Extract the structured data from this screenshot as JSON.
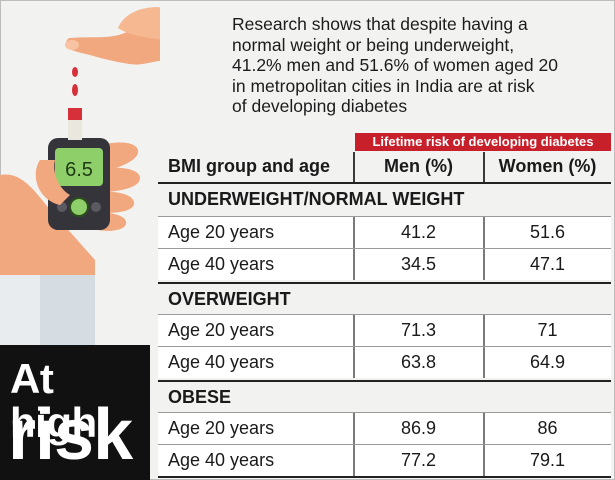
{
  "intro_text": "Research shows that despite having a\nnormal weight or being underweight,\n41.2% men and 51.6% of women aged 20\nin metropolitan cities in India are at risk\nof developing diabetes",
  "meter_reading": "6.5",
  "badge": {
    "line1": "At high",
    "line2": "risk"
  },
  "table": {
    "super_header": "Lifetime risk of developing diabetes",
    "col_headers": [
      "BMI group and age",
      "Men (%)",
      "Women (%)"
    ],
    "groups": [
      {
        "title": "UNDERWEIGHT/NORMAL WEIGHT",
        "rows": [
          [
            "Age 20 years",
            "41.2",
            "51.6"
          ],
          [
            "Age 40 years",
            "34.5",
            "47.1"
          ]
        ]
      },
      {
        "title": "OVERWEIGHT",
        "rows": [
          [
            "Age 20 years",
            "71.3",
            "71"
          ],
          [
            "Age 40 years",
            "63.8",
            "64.9"
          ]
        ]
      },
      {
        "title": "OBESE",
        "rows": [
          [
            "Age 20 years",
            "86.9",
            "86"
          ],
          [
            "Age 40 years",
            "77.2",
            "79.1"
          ]
        ]
      }
    ]
  },
  "colors": {
    "accent_red": "#c8202b",
    "skin": "#f2a87e",
    "meter_green": "#8fcf6a",
    "meter_body": "#35343a"
  }
}
